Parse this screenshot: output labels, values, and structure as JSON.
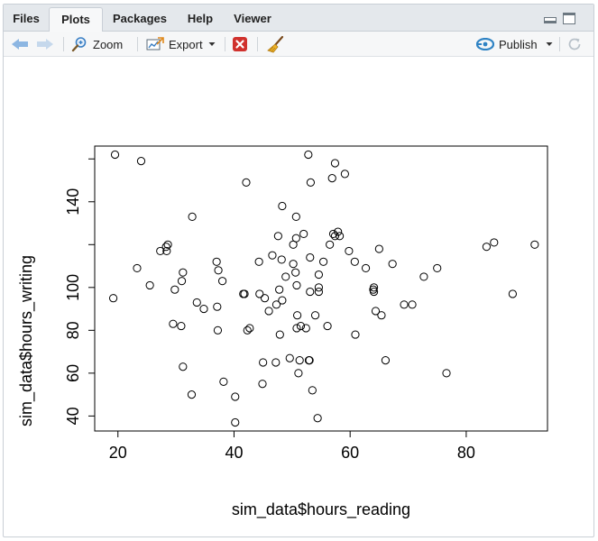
{
  "tabs": [
    {
      "label": "Files"
    },
    {
      "label": "Plots"
    },
    {
      "label": "Packages"
    },
    {
      "label": "Help"
    },
    {
      "label": "Viewer"
    }
  ],
  "active_tab": "Plots",
  "toolbar": {
    "zoom_label": "Zoom",
    "export_label": "Export",
    "publish_label": "Publish"
  },
  "colors": {
    "tabbar_bg": "#e4e8ec",
    "accent_blue": "#4a90d9",
    "delete_red": "#d0312d",
    "publish_blue": "#2f83c4"
  },
  "chart_data": {
    "type": "scatter",
    "xlabel": "sim_data$hours_reading",
    "ylabel": "sim_data$hours_writing",
    "xlim": [
      16,
      94
    ],
    "ylim": [
      33,
      166
    ],
    "x_ticks": [
      20,
      40,
      60,
      80
    ],
    "y_ticks": [
      40,
      60,
      80,
      100,
      140
    ],
    "marker": "open-circle",
    "grid": false,
    "points": [
      [
        19.5,
        162
      ],
      [
        24,
        159
      ],
      [
        19.2,
        95
      ],
      [
        23.3,
        109
      ],
      [
        25.5,
        101
      ],
      [
        27.3,
        117
      ],
      [
        28.3,
        119
      ],
      [
        28.6,
        120
      ],
      [
        28.4,
        117
      ],
      [
        29.8,
        99
      ],
      [
        29.5,
        83
      ],
      [
        31,
        103
      ],
      [
        31.2,
        107
      ],
      [
        30.9,
        82
      ],
      [
        31.2,
        63
      ],
      [
        32.8,
        133
      ],
      [
        32.7,
        50
      ],
      [
        33.6,
        93
      ],
      [
        34.8,
        90
      ],
      [
        37,
        112
      ],
      [
        37.3,
        108
      ],
      [
        37.1,
        91
      ],
      [
        37.2,
        80
      ],
      [
        38,
        103
      ],
      [
        38.2,
        56
      ],
      [
        40.2,
        37
      ],
      [
        40.2,
        49
      ],
      [
        41.6,
        97
      ],
      [
        41.8,
        97
      ],
      [
        42.3,
        80
      ],
      [
        42.1,
        149
      ],
      [
        42.7,
        81
      ],
      [
        44.3,
        112
      ],
      [
        44.4,
        97
      ],
      [
        44.9,
        55
      ],
      [
        45,
        65
      ],
      [
        45.3,
        95
      ],
      [
        46,
        89
      ],
      [
        46.6,
        115
      ],
      [
        47.2,
        65
      ],
      [
        47.6,
        124
      ],
      [
        47.3,
        92
      ],
      [
        47.8,
        99
      ],
      [
        47.9,
        78
      ],
      [
        48.3,
        138
      ],
      [
        48.3,
        94
      ],
      [
        48.2,
        113
      ],
      [
        48.9,
        105
      ],
      [
        49.6,
        67
      ],
      [
        50.2,
        111
      ],
      [
        50.2,
        120
      ],
      [
        50.9,
        87
      ],
      [
        50.7,
        123
      ],
      [
        50.6,
        107
      ],
      [
        50.7,
        133
      ],
      [
        50.8,
        101
      ],
      [
        50.8,
        81
      ],
      [
        51.1,
        60
      ],
      [
        51.3,
        66
      ],
      [
        51.5,
        82
      ],
      [
        52,
        125
      ],
      [
        52.4,
        81
      ],
      [
        52.9,
        66
      ],
      [
        53,
        66
      ],
      [
        53.1,
        98
      ],
      [
        52.8,
        162
      ],
      [
        53.2,
        149
      ],
      [
        53.1,
        114
      ],
      [
        53.5,
        52
      ],
      [
        54,
        87
      ],
      [
        54.4,
        39
      ],
      [
        54.6,
        98
      ],
      [
        54.6,
        100
      ],
      [
        54.6,
        106
      ],
      [
        55.4,
        112
      ],
      [
        56.1,
        82
      ],
      [
        56.5,
        120
      ],
      [
        56.9,
        151
      ],
      [
        57.1,
        125
      ],
      [
        57.4,
        158
      ],
      [
        57.4,
        124
      ],
      [
        57.9,
        126
      ],
      [
        58.2,
        124
      ],
      [
        59.1,
        153
      ],
      [
        59.8,
        117
      ],
      [
        60.8,
        112
      ],
      [
        60.9,
        78
      ],
      [
        62.7,
        109
      ],
      [
        64,
        99
      ],
      [
        64.1,
        98
      ],
      [
        64.1,
        100
      ],
      [
        64.4,
        89
      ],
      [
        65,
        118
      ],
      [
        65.4,
        87
      ],
      [
        66.1,
        66
      ],
      [
        67.3,
        111
      ],
      [
        69.3,
        92
      ],
      [
        70.7,
        92
      ],
      [
        72.7,
        105
      ],
      [
        75,
        109
      ],
      [
        76.6,
        60
      ],
      [
        83.5,
        119
      ],
      [
        84.8,
        121
      ],
      [
        88,
        97
      ],
      [
        91.8,
        120
      ]
    ]
  }
}
